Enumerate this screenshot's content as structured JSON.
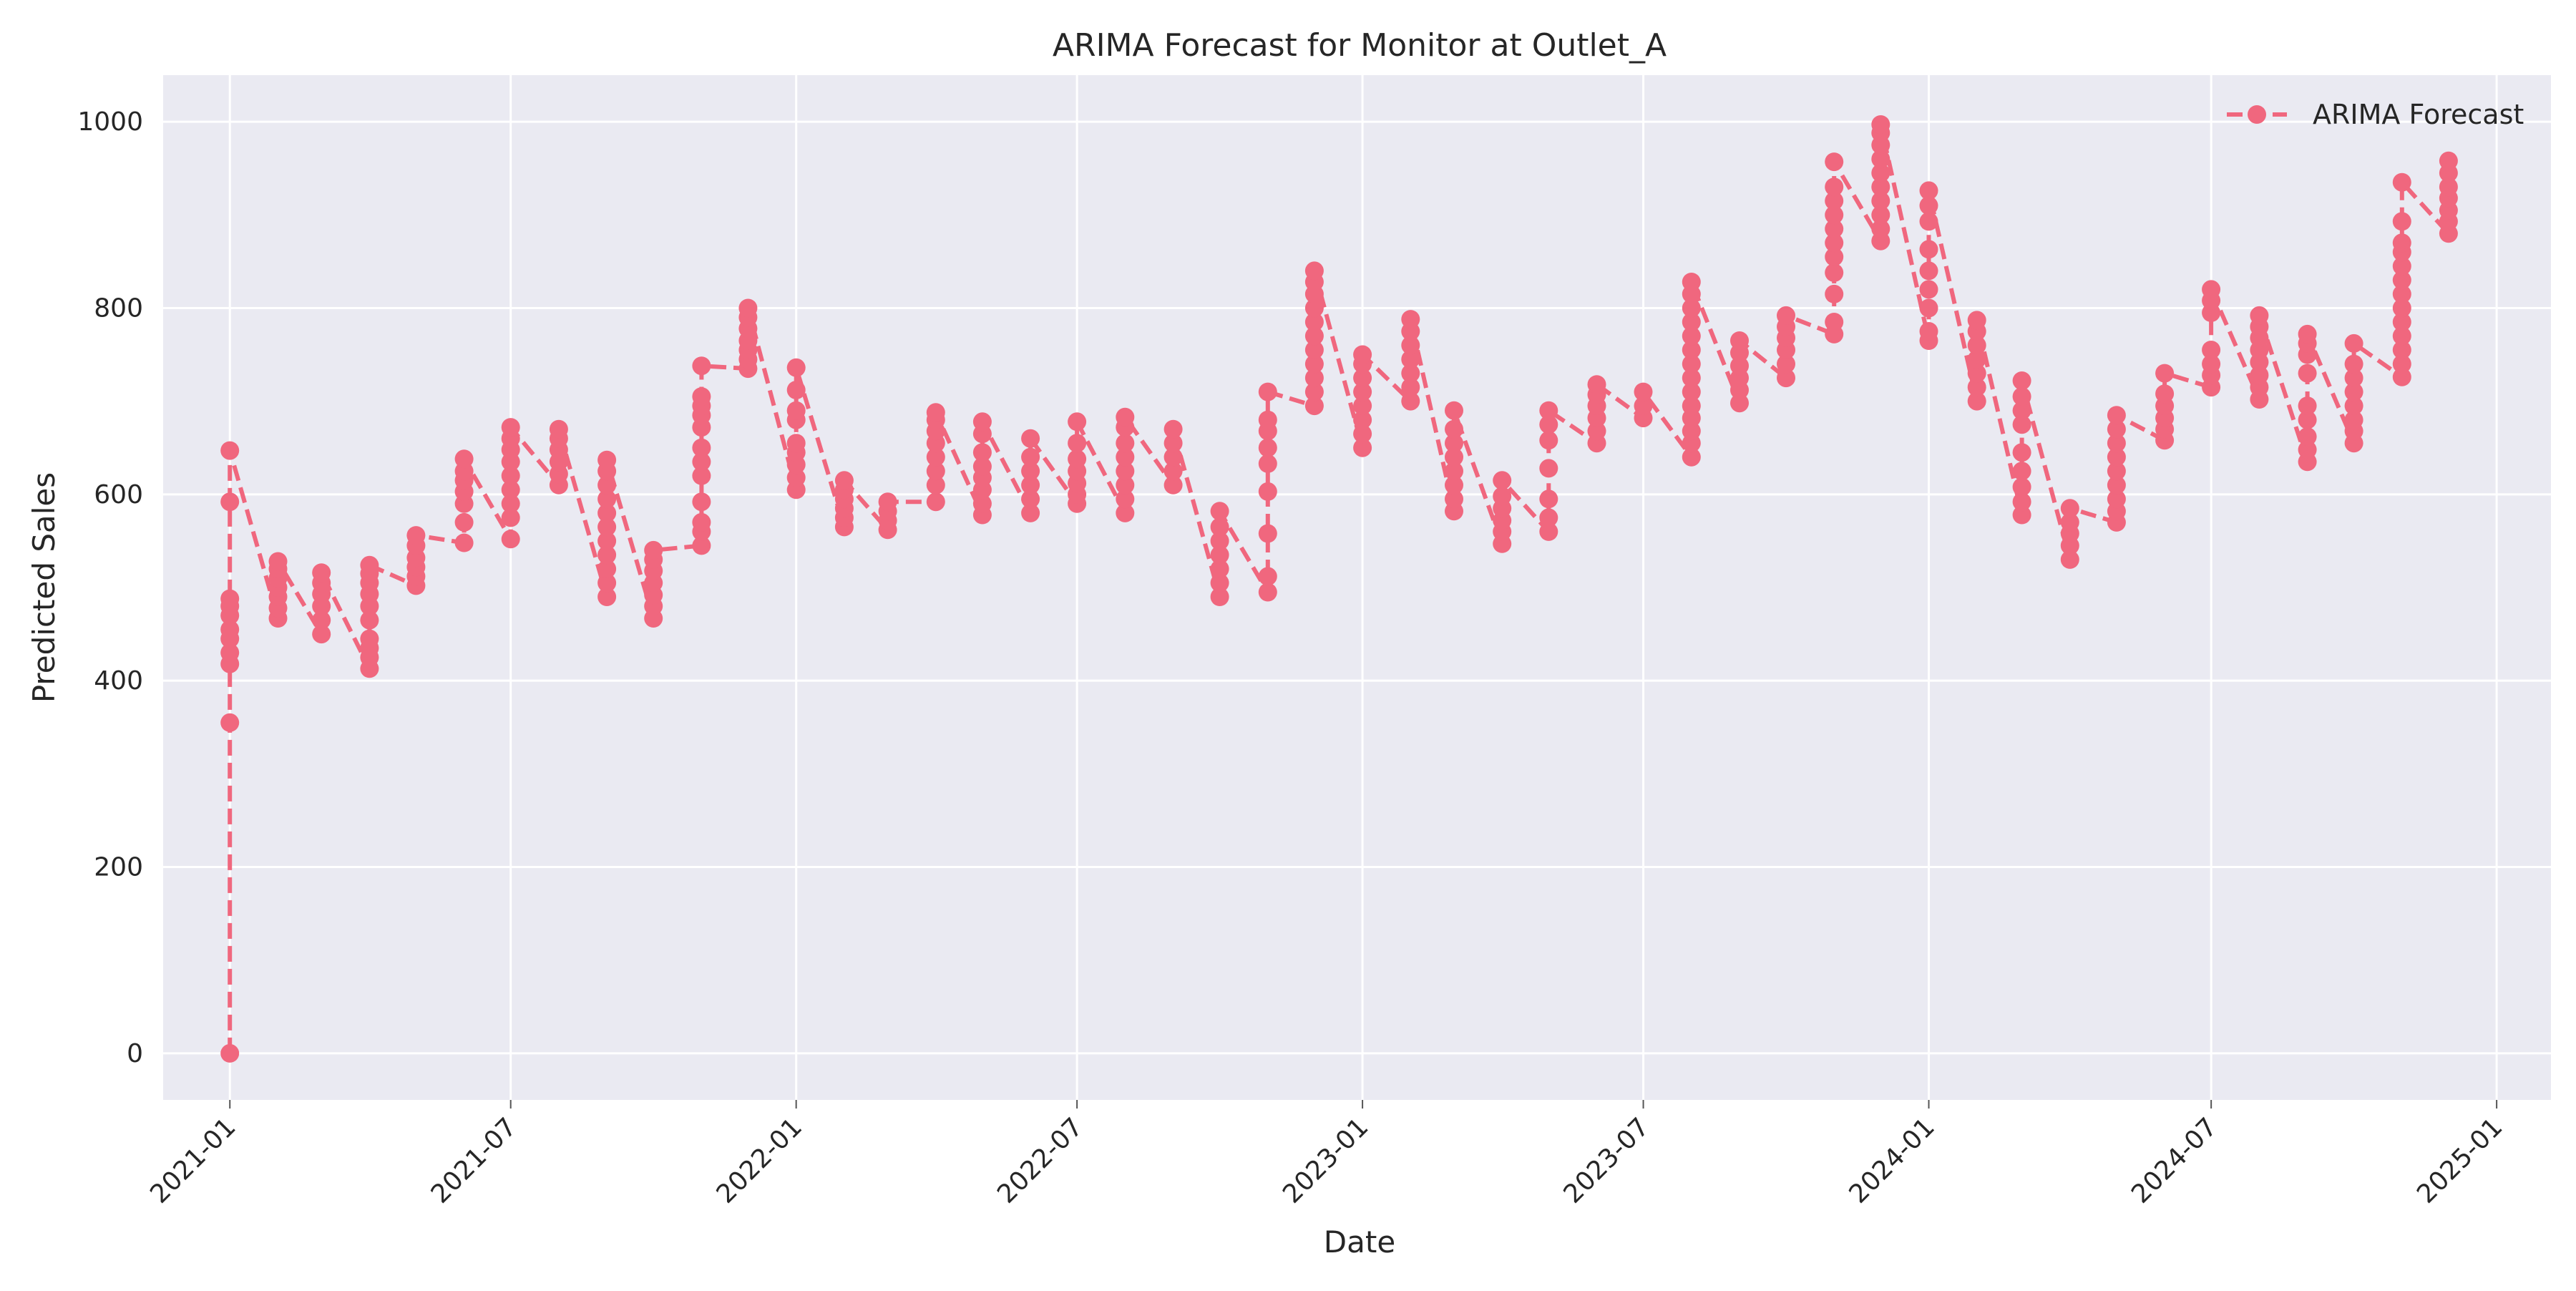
{
  "chart_data": {
    "type": "line",
    "title": "ARIMA Forecast for Monitor at Outlet_A",
    "xlabel": "Date",
    "ylabel": "Predicted Sales",
    "x_range": [
      "2020-11-19",
      "2025-02-05"
    ],
    "ylim": [
      -50,
      1050
    ],
    "x_ticks": [
      "2021-01",
      "2021-07",
      "2022-01",
      "2022-07",
      "2023-01",
      "2023-07",
      "2024-01",
      "2024-07",
      "2025-01"
    ],
    "y_ticks": [
      0,
      200,
      400,
      600,
      800,
      1000
    ],
    "grid": true,
    "legend_position": "top-right",
    "colors": {
      "series": "#f0677e",
      "plot_background": "#eaeaf2",
      "grid": "#ffffff",
      "text": "#262626"
    },
    "series": [
      {
        "name": "ARIMA Forecast",
        "marker": "circle",
        "line_style": "dashed",
        "monthly_points": [
          {
            "date": "2021-01-01",
            "values": [
              0,
              355,
              418,
              430,
              445,
              455,
              470,
              480,
              488,
              592,
              647
            ]
          },
          {
            "date": "2021-02-01",
            "values": [
              467,
              478,
              490,
              500,
              510,
              520,
              528
            ]
          },
          {
            "date": "2021-03-01",
            "values": [
              450,
              465,
              480,
              493,
              505,
              516
            ]
          },
          {
            "date": "2021-04-01",
            "values": [
              413,
              425,
              435,
              445,
              465,
              480,
              493,
              505,
              515,
              524
            ]
          },
          {
            "date": "2021-05-01",
            "values": [
              502,
              512,
              522,
              532,
              545,
              556
            ]
          },
          {
            "date": "2021-06-01",
            "values": [
              548,
              570,
              590,
              603,
              615,
              625,
              638
            ]
          },
          {
            "date": "2021-07-01",
            "values": [
              552,
              575,
              590,
              605,
              620,
              635,
              648,
              660,
              672
            ]
          },
          {
            "date": "2021-08-01",
            "values": [
              610,
              622,
              635,
              648,
              660,
              670
            ]
          },
          {
            "date": "2021-09-01",
            "values": [
              490,
              505,
              520,
              535,
              550,
              565,
              580,
              595,
              610,
              625,
              637
            ]
          },
          {
            "date": "2021-10-01",
            "values": [
              467,
              480,
              492,
              505,
              518,
              530,
              540
            ]
          },
          {
            "date": "2021-11-01",
            "values": [
              545,
              560,
              570,
              592,
              620,
              635,
              650,
              672,
              685,
              695,
              705,
              738
            ]
          },
          {
            "date": "2021-12-01",
            "values": [
              735,
              745,
              755,
              765,
              778,
              790,
              800
            ]
          },
          {
            "date": "2022-01-01",
            "values": [
              605,
              618,
              632,
              645,
              655,
              680,
              690,
              712,
              736
            ]
          },
          {
            "date": "2022-02-01",
            "values": [
              565,
              575,
              585,
              595,
              605,
              615
            ]
          },
          {
            "date": "2022-03-01",
            "values": [
              562,
              572,
              582,
              592
            ]
          },
          {
            "date": "2022-04-01",
            "values": [
              592,
              610,
              625,
              640,
              655,
              668,
              680,
              688
            ]
          },
          {
            "date": "2022-05-01",
            "values": [
              578,
              590,
              605,
              618,
              630,
              645,
              665,
              678
            ]
          },
          {
            "date": "2022-06-01",
            "values": [
              580,
              595,
              610,
              625,
              640,
              660
            ]
          },
          {
            "date": "2022-07-01",
            "values": [
              590,
              600,
              612,
              625,
              638,
              655,
              678
            ]
          },
          {
            "date": "2022-08-01",
            "values": [
              580,
              595,
              610,
              625,
              640,
              655,
              672,
              683
            ]
          },
          {
            "date": "2022-09-01",
            "values": [
              610,
              625,
              640,
              655,
              670
            ]
          },
          {
            "date": "2022-10-01",
            "values": [
              490,
              505,
              520,
              535,
              550,
              565,
              582
            ]
          },
          {
            "date": "2022-11-01",
            "values": [
              495,
              512,
              558,
              603,
              633,
              650,
              668,
              680,
              710
            ]
          },
          {
            "date": "2022-12-01",
            "values": [
              695,
              710,
              725,
              740,
              755,
              770,
              785,
              800,
              815,
              828,
              840
            ]
          },
          {
            "date": "2023-01-01",
            "values": [
              650,
              665,
              680,
              695,
              710,
              725,
              740,
              750
            ]
          },
          {
            "date": "2023-02-01",
            "values": [
              700,
              715,
              730,
              745,
              760,
              775,
              788
            ]
          },
          {
            "date": "2023-03-01",
            "values": [
              582,
              595,
              610,
              625,
              640,
              655,
              670,
              690
            ]
          },
          {
            "date": "2023-04-01",
            "values": [
              547,
              560,
              572,
              585,
              598,
              615
            ]
          },
          {
            "date": "2023-05-01",
            "values": [
              560,
              575,
              595,
              628,
              658,
              675,
              690
            ]
          },
          {
            "date": "2023-06-01",
            "values": [
              655,
              668,
              682,
              695,
              707,
              718
            ]
          },
          {
            "date": "2023-07-01",
            "values": [
              682,
              695,
              710
            ]
          },
          {
            "date": "2023-08-01",
            "values": [
              640,
              655,
              668,
              682,
              695,
              710,
              725,
              740,
              755,
              770,
              785,
              800,
              815,
              828
            ]
          },
          {
            "date": "2023-09-01",
            "values": [
              698,
              712,
              725,
              738,
              752,
              765
            ]
          },
          {
            "date": "2023-10-01",
            "values": [
              725,
              740,
              755,
              768,
              780,
              792
            ]
          },
          {
            "date": "2023-11-01",
            "values": [
              772,
              785,
              815,
              838,
              855,
              870,
              885,
              900,
              915,
              930,
              957
            ]
          },
          {
            "date": "2023-12-01",
            "values": [
              872,
              885,
              900,
              915,
              930,
              945,
              960,
              975,
              988,
              997
            ]
          },
          {
            "date": "2024-01-01",
            "values": [
              765,
              775,
              800,
              820,
              840,
              863,
              893,
              910,
              926
            ]
          },
          {
            "date": "2024-02-01",
            "values": [
              700,
              715,
              730,
              745,
              760,
              775,
              787
            ]
          },
          {
            "date": "2024-03-01",
            "values": [
              578,
              592,
              608,
              625,
              645,
              675,
              690,
              705,
              722
            ]
          },
          {
            "date": "2024-04-01",
            "values": [
              530,
              545,
              558,
              570,
              585
            ]
          },
          {
            "date": "2024-05-01",
            "values": [
              570,
              582,
              595,
              610,
              625,
              640,
              655,
              670,
              685
            ]
          },
          {
            "date": "2024-06-01",
            "values": [
              658,
              670,
              682,
              695,
              708,
              730
            ]
          },
          {
            "date": "2024-07-01",
            "values": [
              715,
              728,
              740,
              755,
              795,
              808,
              820
            ]
          },
          {
            "date": "2024-08-01",
            "values": [
              702,
              715,
              728,
              742,
              755,
              768,
              780,
              792
            ]
          },
          {
            "date": "2024-09-01",
            "values": [
              635,
              648,
              662,
              680,
              695,
              730,
              750,
              762,
              772
            ]
          },
          {
            "date": "2024-10-01",
            "values": [
              655,
              668,
              680,
              695,
              710,
              725,
              740,
              762
            ]
          },
          {
            "date": "2024-11-01",
            "values": [
              726,
              740,
              755,
              770,
              785,
              800,
              815,
              830,
              845,
              860,
              870,
              893,
              935
            ]
          },
          {
            "date": "2024-12-01",
            "values": [
              880,
              893,
              905,
              918,
              930,
              945,
              958
            ]
          }
        ]
      }
    ]
  }
}
